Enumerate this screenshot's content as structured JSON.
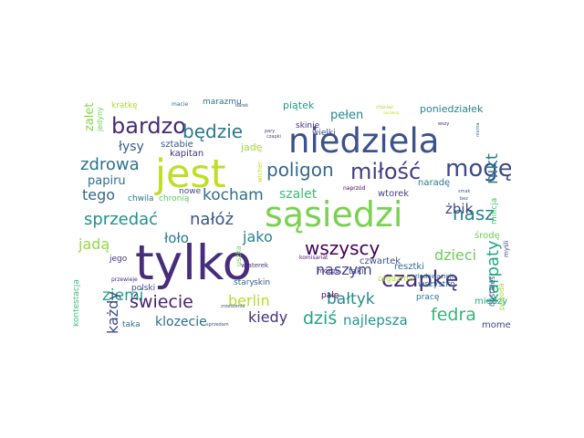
{
  "words": [
    {
      "text": "tylko",
      "color": "#472d7b"
    },
    {
      "text": "jest",
      "color": "#bddf26"
    },
    {
      "text": "niedziela",
      "color": "#3b528b"
    },
    {
      "text": "sąsiedzi",
      "color": "#7ad151"
    },
    {
      "text": "czapkę",
      "color": "#472c7a"
    },
    {
      "text": "bardzo",
      "color": "#482878"
    },
    {
      "text": "mogę",
      "color": "#3e4989"
    },
    {
      "text": "miłość",
      "color": "#433e85"
    },
    {
      "text": "poligon",
      "color": "#31688e"
    },
    {
      "text": "będzie",
      "color": "#2a788e"
    },
    {
      "text": "wszyscy",
      "color": "#440154"
    },
    {
      "text": "sprzedać",
      "color": "#21918c"
    },
    {
      "text": "nałóż",
      "color": "#3a548c"
    },
    {
      "text": "zdrowa",
      "color": "#2c728e"
    },
    {
      "text": "kocham",
      "color": "#2e6e8e"
    },
    {
      "text": "ziemi",
      "color": "#1f9e89"
    },
    {
      "text": "świecie",
      "color": "#482173"
    },
    {
      "text": "fedra",
      "color": "#35b779"
    },
    {
      "text": "karpaty",
      "color": "#22a884"
    },
    {
      "text": "nasz",
      "color": "#25848e"
    },
    {
      "text": "nikt",
      "color": "#26828e"
    },
    {
      "text": "dziś",
      "color": "#20a486"
    },
    {
      "text": "bałtyk",
      "color": "#23898e"
    },
    {
      "text": "naszym",
      "color": "#414487"
    },
    {
      "text": "kiedy",
      "color": "#46327e"
    },
    {
      "text": "tego",
      "color": "#31688e"
    },
    {
      "text": "papiru",
      "color": "#2d708e"
    },
    {
      "text": "szalet",
      "color": "#3dbc74"
    },
    {
      "text": "żbik",
      "color": "#404688"
    },
    {
      "text": "dzieci",
      "color": "#6ccd5a"
    },
    {
      "text": "jadą",
      "color": "#95d840"
    },
    {
      "text": "łoło",
      "color": "#297a8e"
    },
    {
      "text": "jako",
      "color": "#26828e"
    },
    {
      "text": "berlin",
      "color": "#b5de2b"
    },
    {
      "text": "najlepsza",
      "color": "#1f968b"
    },
    {
      "text": "klozecie",
      "color": "#2e6e8e"
    },
    {
      "text": "każdy",
      "color": "#3f4788"
    },
    {
      "text": "łysy",
      "color": "#365c8d"
    },
    {
      "text": "zalet",
      "color": "#86d549"
    },
    {
      "text": "pełen",
      "color": "#23898e"
    },
    {
      "text": "piątek",
      "color": "#1f9a8a"
    },
    {
      "text": "poniedziałek",
      "color": "#25848e"
    },
    {
      "text": "marazmu",
      "color": "#2d708e"
    },
    {
      "text": "kratkę",
      "color": "#a8db34"
    },
    {
      "text": "sztabie",
      "color": "#3b528b"
    },
    {
      "text": "kapitan",
      "color": "#46337e"
    },
    {
      "text": "jadę",
      "color": "#a0da39"
    },
    {
      "text": "skinie",
      "color": "#472a7a"
    },
    {
      "text": "wielki",
      "color": "#3f4889"
    },
    {
      "text": "naradę",
      "color": "#2a788e"
    },
    {
      "text": "wtorek",
      "color": "#433d84"
    },
    {
      "text": "milicja",
      "color": "#4ac16d"
    },
    {
      "text": "środę",
      "color": "#6ece58"
    },
    {
      "text": "czwartek",
      "color": "#3a548c"
    },
    {
      "text": "taki",
      "color": "#3e4a89"
    },
    {
      "text": "wszystko",
      "color": "#2d718e"
    },
    {
      "text": "resztki",
      "color": "#2f6c8e"
    },
    {
      "text": "między",
      "color": "#22a785"
    },
    {
      "text": "dostałeś",
      "color": "#3b518b"
    },
    {
      "text": "moment",
      "color": "#414487"
    },
    {
      "text": "pogoda",
      "color": "#a2da37"
    },
    {
      "text": "myśli",
      "color": "#3f4788"
    },
    {
      "text": "pracę",
      "color": "#2c738e"
    },
    {
      "text": "pałę",
      "color": "#440154"
    },
    {
      "text": "stary",
      "color": "#2e6e8e"
    },
    {
      "text": "skin",
      "color": "#3a538b"
    },
    {
      "text": "orgazmu",
      "color": "#bade28"
    },
    {
      "text": "polski",
      "color": "#414287"
    },
    {
      "text": "jego",
      "color": "#46337e"
    },
    {
      "text": "uszka",
      "color": "#73d056"
    },
    {
      "text": "taka",
      "color": "#2d718e"
    },
    {
      "text": "kontestacja",
      "color": "#3dbc74"
    },
    {
      "text": "jedyny",
      "color": "#70cf57"
    },
    {
      "text": "nowe",
      "color": "#404688"
    },
    {
      "text": "chwila",
      "color": "#2a768e"
    },
    {
      "text": "chronią",
      "color": "#5ec962"
    },
    {
      "text": "wicher",
      "color": "#c2df23"
    },
    {
      "text": "mózgu",
      "color": "#482374"
    },
    {
      "text": "komisariat",
      "color": "#481769"
    },
    {
      "text": "wiaterek",
      "color": "#46337e"
    },
    {
      "text": "przewieje",
      "color": "#472d7b"
    },
    {
      "text": "zrzeszenia",
      "color": "#3b518b"
    },
    {
      "text": "sprzedam",
      "color": "#3b528b"
    },
    {
      "text": "naprzód",
      "color": "#440154"
    },
    {
      "text": "smak",
      "color": "#34618d"
    },
    {
      "text": "niema",
      "color": "#2a788e"
    },
    {
      "text": "bez",
      "color": "#3b528b"
    },
    {
      "text": "macie",
      "color": "#2f6b8e"
    },
    {
      "text": "darek",
      "color": "#3b518b"
    },
    {
      "text": "chociaż",
      "color": "#a5db36"
    },
    {
      "text": "zaczekaj",
      "color": "#c8e020"
    },
    {
      "text": "wszy",
      "color": "#482475"
    },
    {
      "text": "pary",
      "color": "#404588"
    },
    {
      "text": "czapki",
      "color": "#3f4889"
    },
    {
      "text": "zlodowacieje",
      "color": "#2c728e"
    }
  ]
}
